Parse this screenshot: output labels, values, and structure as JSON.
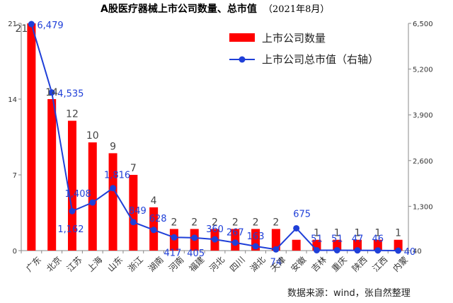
{
  "chart_data": {
    "type": "bar",
    "title": "A股医疗器械上市公司数量、总市值",
    "subtitle": "（2021年8月）",
    "categories": [
      "广东",
      "北京",
      "江苏",
      "上海",
      "山东",
      "浙江",
      "湖南",
      "河南",
      "福建",
      "河北",
      "四川",
      "湖北",
      "天津",
      "安徽",
      "吉林",
      "重庆",
      "陕西",
      "江西",
      "内蒙"
    ],
    "series": [
      {
        "name": "上市公司数量",
        "type": "bar",
        "axis": "left",
        "color": "#ff0000",
        "values": [
          21,
          14,
          12,
          10,
          9,
          7,
          4,
          2,
          2,
          2,
          2,
          2,
          2,
          1,
          1,
          1,
          1,
          1,
          1
        ],
        "labels": [
          "21",
          "14",
          "12",
          "10",
          "9",
          "7",
          "4",
          "2",
          "2",
          "2",
          "2",
          "2",
          "2",
          "",
          "1",
          "1",
          "1",
          "1",
          "1"
        ]
      },
      {
        "name": "上市公司总市值（右轴）",
        "type": "line",
        "axis": "right",
        "color": "#1f3fd8",
        "values": [
          6479,
          4535,
          1162,
          1408,
          1816,
          849,
          628,
          417,
          405,
          360,
          267,
          163,
          74,
          675,
          51,
          51,
          47,
          46,
          40
        ],
        "labels": [
          "6,479",
          "4,535",
          "1,162",
          "1,408",
          "1,816",
          "849",
          "628",
          "417",
          "405",
          "360",
          "267",
          "163",
          "74",
          "675",
          "51",
          "51",
          "47",
          "46",
          "40"
        ]
      }
    ],
    "y_left": {
      "ticks": [
        "0",
        "7",
        "14",
        "21"
      ],
      "ylim": [
        0,
        21
      ]
    },
    "y_right": {
      "ticks": [
        "40",
        "1,300",
        "2,600",
        "3,900",
        "5,200",
        "6,500"
      ],
      "ylim": [
        40,
        6500
      ]
    },
    "legend_position": "top-right",
    "grid": false
  },
  "source": "数据来源：wind，张自然整理"
}
